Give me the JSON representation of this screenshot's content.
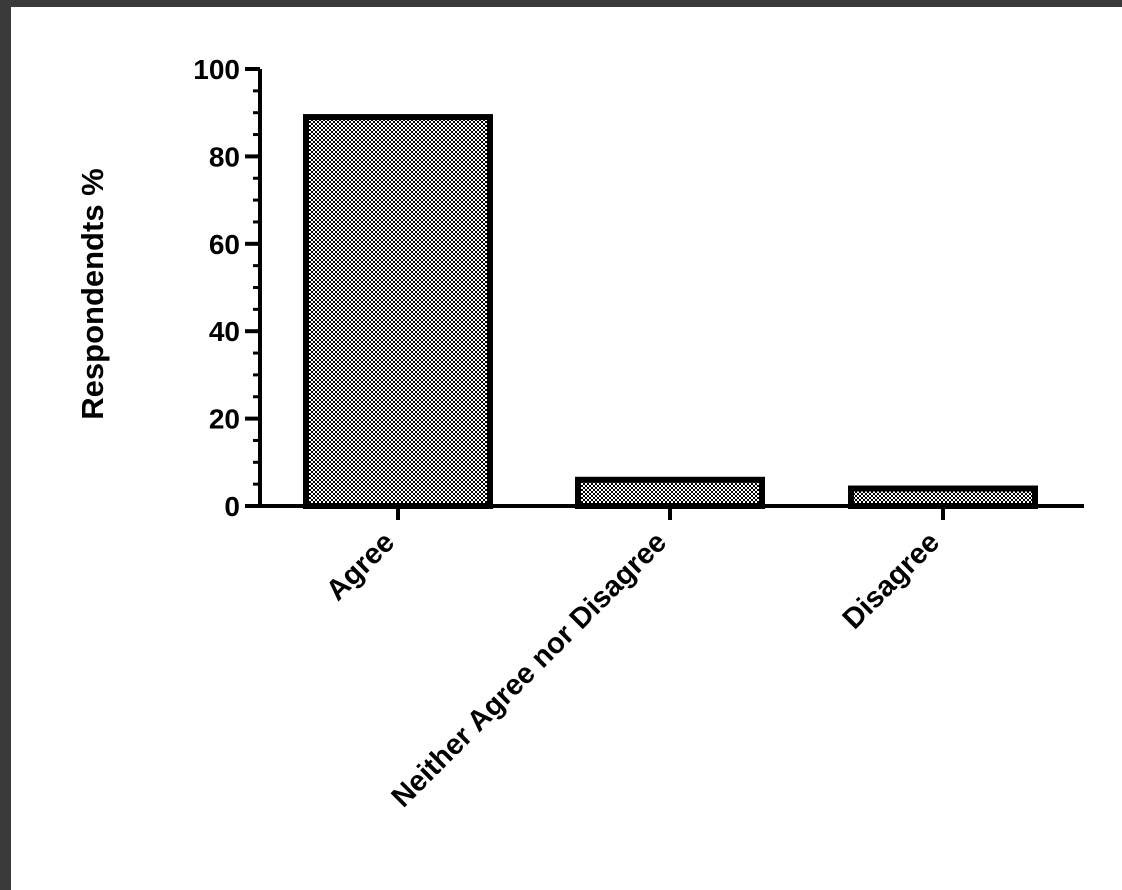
{
  "chart_data": {
    "type": "bar",
    "categories": [
      "Agree",
      "Neither Agree nor Disagree",
      "Disagree"
    ],
    "values": [
      89,
      6,
      4
    ],
    "title": "",
    "xlabel": "",
    "ylabel": "Respondendts %",
    "ylim": [
      0,
      100
    ],
    "yticks": [
      0,
      20,
      40,
      60,
      80,
      100
    ],
    "grid": false,
    "bar_fill": "crosshatch pattern",
    "colors": {
      "bar_border": "#000000",
      "pattern_dark": "#000000",
      "pattern_light": "#ffffff",
      "background": "#ffffff",
      "outer_frame": "#3a3a3a"
    }
  }
}
